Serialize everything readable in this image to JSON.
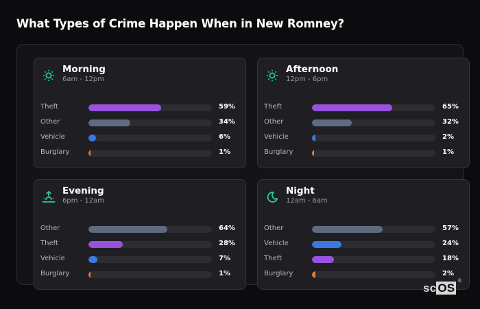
{
  "page": {
    "title": "What Types of Crime Happen When in New Romney?"
  },
  "colors": {
    "theft": "#9b51e0",
    "other": "#5f6b80",
    "vehicle": "#3b78e0",
    "burglary": "#e07b39",
    "icon_accent": "#2ec9a0",
    "background": "#0c0c0f",
    "card": "#1f1f23",
    "track": "#2c2c31"
  },
  "cards": [
    {
      "title": "Morning",
      "subtitle": "6am - 12pm",
      "icon": "sun-icon",
      "rows": [
        {
          "label": "Theft",
          "value": 59,
          "display": "59%",
          "color": "#9b51e0"
        },
        {
          "label": "Other",
          "value": 34,
          "display": "34%",
          "color": "#5f6b80"
        },
        {
          "label": "Vehicle",
          "value": 6,
          "display": "6%",
          "color": "#3b78e0"
        },
        {
          "label": "Burglary",
          "value": 1,
          "display": "1%",
          "color": "#e07b39"
        }
      ]
    },
    {
      "title": "Afternoon",
      "subtitle": "12pm - 6pm",
      "icon": "sun-icon",
      "rows": [
        {
          "label": "Theft",
          "value": 65,
          "display": "65%",
          "color": "#9b51e0"
        },
        {
          "label": "Other",
          "value": 32,
          "display": "32%",
          "color": "#5f6b80"
        },
        {
          "label": "Vehicle",
          "value": 2,
          "display": "2%",
          "color": "#3b78e0"
        },
        {
          "label": "Burglary",
          "value": 1,
          "display": "1%",
          "color": "#e07b39"
        }
      ]
    },
    {
      "title": "Evening",
      "subtitle": "6pm - 12am",
      "icon": "sunset-icon",
      "rows": [
        {
          "label": "Other",
          "value": 64,
          "display": "64%",
          "color": "#5f6b80"
        },
        {
          "label": "Theft",
          "value": 28,
          "display": "28%",
          "color": "#9b51e0"
        },
        {
          "label": "Vehicle",
          "value": 7,
          "display": "7%",
          "color": "#3b78e0"
        },
        {
          "label": "Burglary",
          "value": 1,
          "display": "1%",
          "color": "#e07b39"
        }
      ]
    },
    {
      "title": "Night",
      "subtitle": "12am - 6am",
      "icon": "moon-icon",
      "rows": [
        {
          "label": "Other",
          "value": 57,
          "display": "57%",
          "color": "#5f6b80"
        },
        {
          "label": "Vehicle",
          "value": 24,
          "display": "24%",
          "color": "#3b78e0"
        },
        {
          "label": "Theft",
          "value": 18,
          "display": "18%",
          "color": "#9b51e0"
        },
        {
          "label": "Burglary",
          "value": 2,
          "display": "2%",
          "color": "#e07b39"
        }
      ]
    }
  ],
  "logo": {
    "prefix": "sc",
    "highlight": "OS",
    "mark": "®"
  },
  "chart_data": {
    "type": "bar",
    "title": "What Types of Crime Happen When in New Romney?",
    "orientation": "horizontal",
    "unit": "%",
    "xlim": [
      0,
      100
    ],
    "grid": false,
    "legend": null,
    "panels": [
      {
        "name": "Morning",
        "subtitle": "6am - 12pm",
        "categories": [
          "Theft",
          "Other",
          "Vehicle",
          "Burglary"
        ],
        "values": [
          59,
          34,
          6,
          1
        ]
      },
      {
        "name": "Afternoon",
        "subtitle": "12pm - 6pm",
        "categories": [
          "Theft",
          "Other",
          "Vehicle",
          "Burglary"
        ],
        "values": [
          65,
          32,
          2,
          1
        ]
      },
      {
        "name": "Evening",
        "subtitle": "6pm - 12am",
        "categories": [
          "Other",
          "Theft",
          "Vehicle",
          "Burglary"
        ],
        "values": [
          64,
          28,
          7,
          1
        ]
      },
      {
        "name": "Night",
        "subtitle": "12am - 6am",
        "categories": [
          "Other",
          "Vehicle",
          "Theft",
          "Burglary"
        ],
        "values": [
          57,
          24,
          18,
          2
        ]
      }
    ],
    "series": [
      {
        "name": "Theft",
        "values": [
          59,
          65,
          28,
          18
        ]
      },
      {
        "name": "Other",
        "values": [
          34,
          32,
          64,
          57
        ]
      },
      {
        "name": "Vehicle",
        "values": [
          6,
          2,
          7,
          24
        ]
      },
      {
        "name": "Burglary",
        "values": [
          1,
          1,
          1,
          2
        ]
      }
    ],
    "categories": [
      "Morning",
      "Afternoon",
      "Evening",
      "Night"
    ]
  }
}
